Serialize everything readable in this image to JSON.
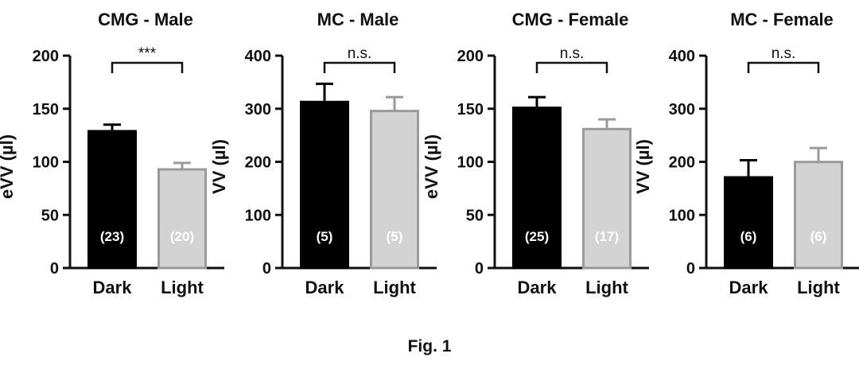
{
  "caption": "Fig. 1",
  "colors": {
    "dark": "#000000",
    "light": "#d3d3d3",
    "light_edge": "#9a9a9a",
    "axis": "#111111"
  },
  "chart_data": [
    {
      "type": "bar",
      "title": "CMG - Male",
      "ylabel": "eVV (µl)",
      "ylim": [
        0,
        200
      ],
      "yticks": [
        0,
        50,
        100,
        150,
        200
      ],
      "categories": [
        "Dark",
        "Light"
      ],
      "values": [
        130,
        94
      ],
      "errors": [
        5,
        5
      ],
      "n_labels": [
        "(23)",
        "(20)"
      ],
      "significance": "***",
      "grid": false
    },
    {
      "type": "bar",
      "title": "MC - Male",
      "ylabel": "VV (µl)",
      "ylim": [
        0,
        400
      ],
      "yticks": [
        0,
        100,
        200,
        300,
        400
      ],
      "categories": [
        "Dark",
        "Light"
      ],
      "values": [
        315,
        298
      ],
      "errors": [
        32,
        24
      ],
      "n_labels": [
        "(5)",
        "(5)"
      ],
      "significance": "n.s.",
      "grid": false
    },
    {
      "type": "bar",
      "title": "CMG - Female",
      "ylabel": "eVV (µl)",
      "ylim": [
        0,
        200
      ],
      "yticks": [
        0,
        50,
        100,
        150,
        200
      ],
      "categories": [
        "Dark",
        "Light"
      ],
      "values": [
        152,
        132
      ],
      "errors": [
        9,
        8
      ],
      "n_labels": [
        "(25)",
        "(17)"
      ],
      "significance": "n.s.",
      "grid": false
    },
    {
      "type": "bar",
      "title": "MC - Female",
      "ylabel": "VV (µl)",
      "ylim": [
        0,
        400
      ],
      "yticks": [
        0,
        100,
        200,
        300,
        400
      ],
      "categories": [
        "Dark",
        "Light"
      ],
      "values": [
        173,
        202
      ],
      "errors": [
        30,
        24
      ],
      "n_labels": [
        "(6)",
        "(6)"
      ],
      "significance": "n.s.",
      "grid": false
    }
  ]
}
